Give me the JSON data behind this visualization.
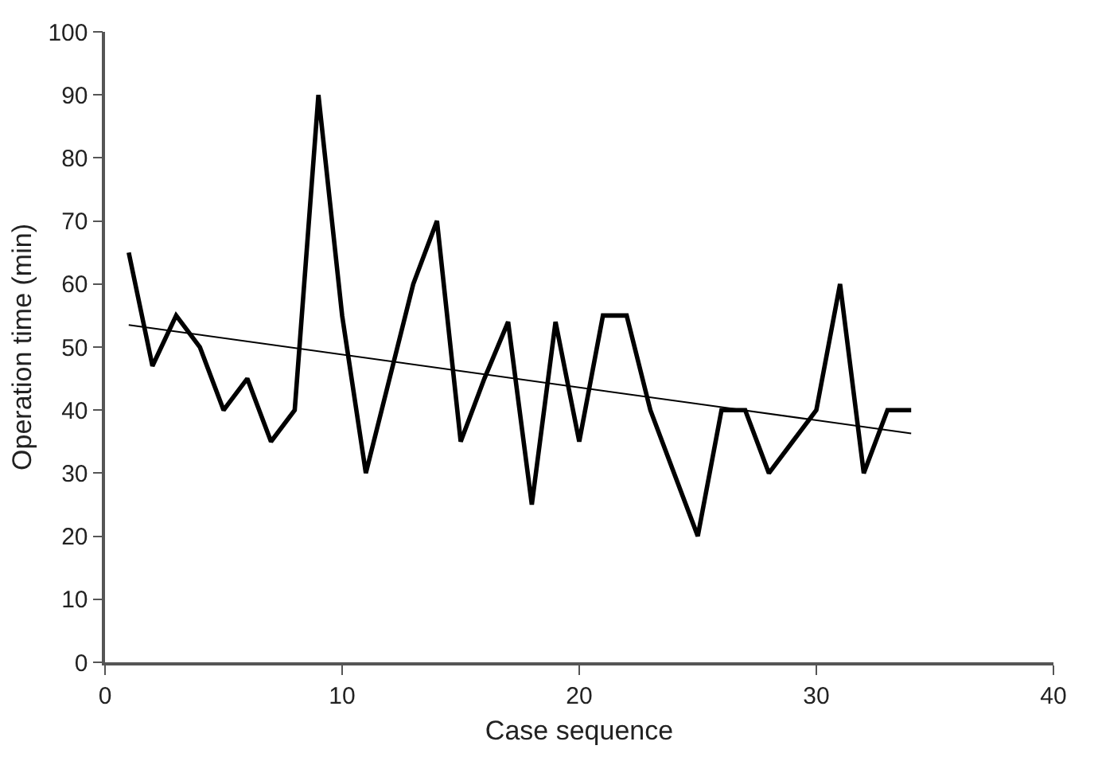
{
  "chart_data": {
    "type": "line",
    "xlabel": "Case sequence",
    "ylabel": "Operation time (min)",
    "xlim": [
      0,
      40
    ],
    "xticks": [
      0,
      10,
      20,
      30,
      40
    ],
    "ylim": [
      0,
      100
    ],
    "yticks": [
      0,
      10,
      20,
      30,
      40,
      50,
      60,
      70,
      80,
      90,
      100
    ],
    "marker": "none",
    "line_style": "solid",
    "series": [
      {
        "color": "#000000",
        "x": [
          1,
          2,
          3,
          4,
          5,
          6,
          7,
          8,
          9,
          10,
          11,
          12,
          13,
          14,
          15,
          16,
          17,
          18,
          19,
          20,
          21,
          22,
          23,
          24,
          25,
          26,
          27,
          28,
          29,
          30,
          31,
          32,
          33,
          34
        ],
        "values": [
          65,
          47,
          55,
          50,
          40,
          45,
          35,
          40,
          90,
          55,
          30,
          45,
          60,
          70,
          35,
          45,
          54,
          25,
          54,
          35,
          55,
          55,
          40,
          30,
          20,
          40,
          40,
          30,
          35,
          40,
          60,
          30,
          40,
          40
        ]
      },
      {
        "type": "line",
        "color": "#000000",
        "x": [
          1,
          34
        ],
        "values": [
          53.5,
          36.3
        ]
      }
    ]
  }
}
